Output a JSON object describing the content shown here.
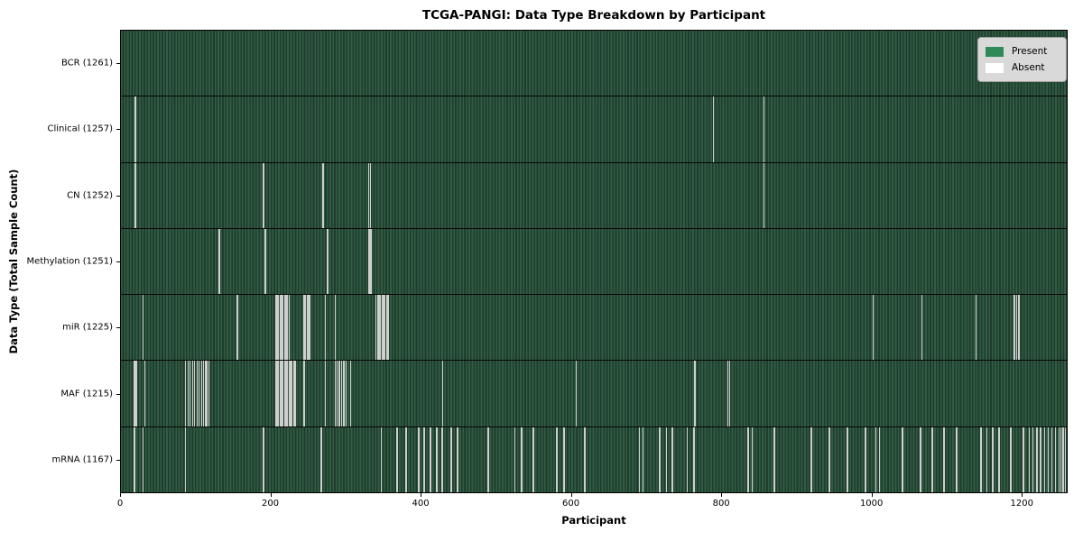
{
  "figure": {
    "background": "#ffffff"
  },
  "chart_data": {
    "type": "heatmap",
    "title": "TCGA-PANGI: Data Type Breakdown by Participant",
    "xlabel": "Participant",
    "ylabel": "Data Type (Total Sample Count)",
    "total_participants": 1261,
    "x_ticks": [
      0,
      200,
      400,
      600,
      800,
      1000,
      1200
    ],
    "grid": false,
    "legend": {
      "position": "upper-right",
      "entries": [
        {
          "label": "Present",
          "color": "#2e8b57"
        },
        {
          "label": "Absent",
          "color": "#ffffff"
        }
      ]
    },
    "colors": {
      "present_fill": "#2e8b57",
      "present_stripe_light": "#315c44",
      "present_stripe_dark": "#1f3d2c",
      "absent_line": "#cfcfcf",
      "row_separator": "#060606"
    },
    "rows": [
      {
        "label": "BCR (1261)",
        "name": "BCR",
        "present_count": 1261,
        "absent_participants": []
      },
      {
        "label": "Clinical (1257)",
        "name": "Clinical",
        "present_count": 1257,
        "absent_participants": [
          18,
          19,
          789,
          856
        ]
      },
      {
        "label": "CN (1252)",
        "name": "CN",
        "present_count": 1252,
        "absent_participants": [
          17,
          18,
          19,
          189,
          268,
          269,
          329,
          331,
          856
        ]
      },
      {
        "label": "Methylation (1251)",
        "name": "Methylation",
        "present_count": 1251,
        "absent_participants": [
          129,
          130,
          191,
          192,
          274,
          275,
          329,
          330,
          332,
          333
        ]
      },
      {
        "label": "miR (1225)",
        "name": "miR",
        "present_count": 1225,
        "absent_participants": [
          28,
          154,
          205,
          207,
          209,
          211,
          213,
          215,
          217,
          219,
          221,
          223,
          243,
          245,
          247,
          249,
          251,
          271,
          285,
          339,
          341,
          343,
          345,
          347,
          349,
          351,
          353,
          355,
          1002,
          1067,
          1139,
          1190,
          1191,
          1193,
          1195,
          1197
        ]
      },
      {
        "label": "MAF (1215)",
        "name": "MAF",
        "present_count": 1215,
        "absent_participants": [
          16,
          18,
          20,
          31,
          85,
          88,
          91,
          94,
          97,
          100,
          103,
          106,
          109,
          112,
          114,
          116,
          205,
          207,
          209,
          211,
          213,
          215,
          217,
          219,
          221,
          223,
          225,
          227,
          229,
          231,
          243,
          271,
          285,
          287,
          289,
          291,
          293,
          295,
          297,
          299,
          305,
          428,
          606,
          764,
          808,
          810
        ]
      },
      {
        "label": "mRNA (1167)",
        "name": "mRNA",
        "present_count": 1167,
        "absent_participants": [
          16,
          17,
          28,
          85,
          189,
          266,
          346,
          367,
          368,
          379,
          395,
          396,
          403,
          404,
          411,
          412,
          419,
          420,
          427,
          428,
          439,
          440,
          447,
          448,
          488,
          489,
          524,
          532,
          533,
          548,
          549,
          580,
          589,
          590,
          617,
          618,
          690,
          695,
          717,
          718,
          726,
          734,
          735,
          754,
          762,
          763,
          835,
          840,
          870,
          871,
          919,
          920,
          943,
          944,
          967,
          968,
          991,
          992,
          1005,
          1010,
          1040,
          1041,
          1064,
          1065,
          1080,
          1081,
          1096,
          1097,
          1112,
          1113,
          1145,
          1146,
          1153,
          1161,
          1162,
          1169,
          1170,
          1185,
          1186,
          1201,
          1202,
          1210,
          1215,
          1220,
          1225,
          1230,
          1235,
          1240,
          1245,
          1250,
          1252,
          1254,
          1256,
          1258
        ]
      }
    ]
  }
}
